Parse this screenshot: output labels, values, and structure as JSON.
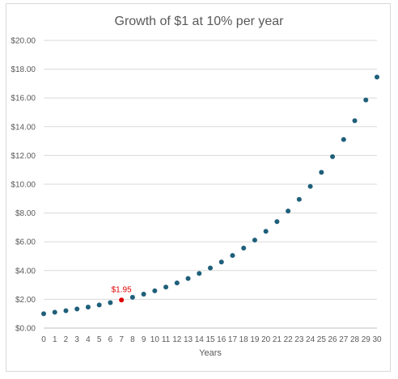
{
  "chart_data": {
    "type": "scatter",
    "title": "Growth of $1 at 10% per year",
    "xlabel": "Years",
    "ylabel": "",
    "x": [
      0,
      1,
      2,
      3,
      4,
      5,
      6,
      7,
      8,
      9,
      10,
      11,
      12,
      13,
      14,
      15,
      16,
      17,
      18,
      19,
      20,
      21,
      22,
      23,
      24,
      25,
      26,
      27,
      28,
      29,
      30
    ],
    "series": [
      {
        "name": "",
        "color": "#1f5f7a",
        "values": [
          1.0,
          1.1,
          1.21,
          1.33,
          1.46,
          1.61,
          1.77,
          1.95,
          2.14,
          2.36,
          2.59,
          2.85,
          3.14,
          3.45,
          3.8,
          4.18,
          4.59,
          5.05,
          5.56,
          6.12,
          6.73,
          7.4,
          8.14,
          8.95,
          9.85,
          10.83,
          11.92,
          13.11,
          14.42,
          15.86,
          17.45
        ]
      }
    ],
    "xlim": [
      0,
      30
    ],
    "ylim": [
      0,
      20
    ],
    "y_ticks": [
      "$0.00",
      "$2.00",
      "$4.00",
      "$6.00",
      "$8.00",
      "$10.00",
      "$12.00",
      "$14.00",
      "$16.00",
      "$18.00",
      "$20.00"
    ],
    "x_ticks": [
      "0",
      "1",
      "2",
      "3",
      "4",
      "5",
      "6",
      "7",
      "8",
      "9",
      "10",
      "11",
      "12",
      "13",
      "14",
      "15",
      "16",
      "17",
      "18",
      "19",
      "20",
      "21",
      "22",
      "23",
      "24",
      "25",
      "26",
      "27",
      "28",
      "29",
      "30"
    ],
    "grid": true,
    "highlight": {
      "x": 7,
      "y": 1.95,
      "label": "$1.95",
      "color": "#e00000"
    }
  }
}
